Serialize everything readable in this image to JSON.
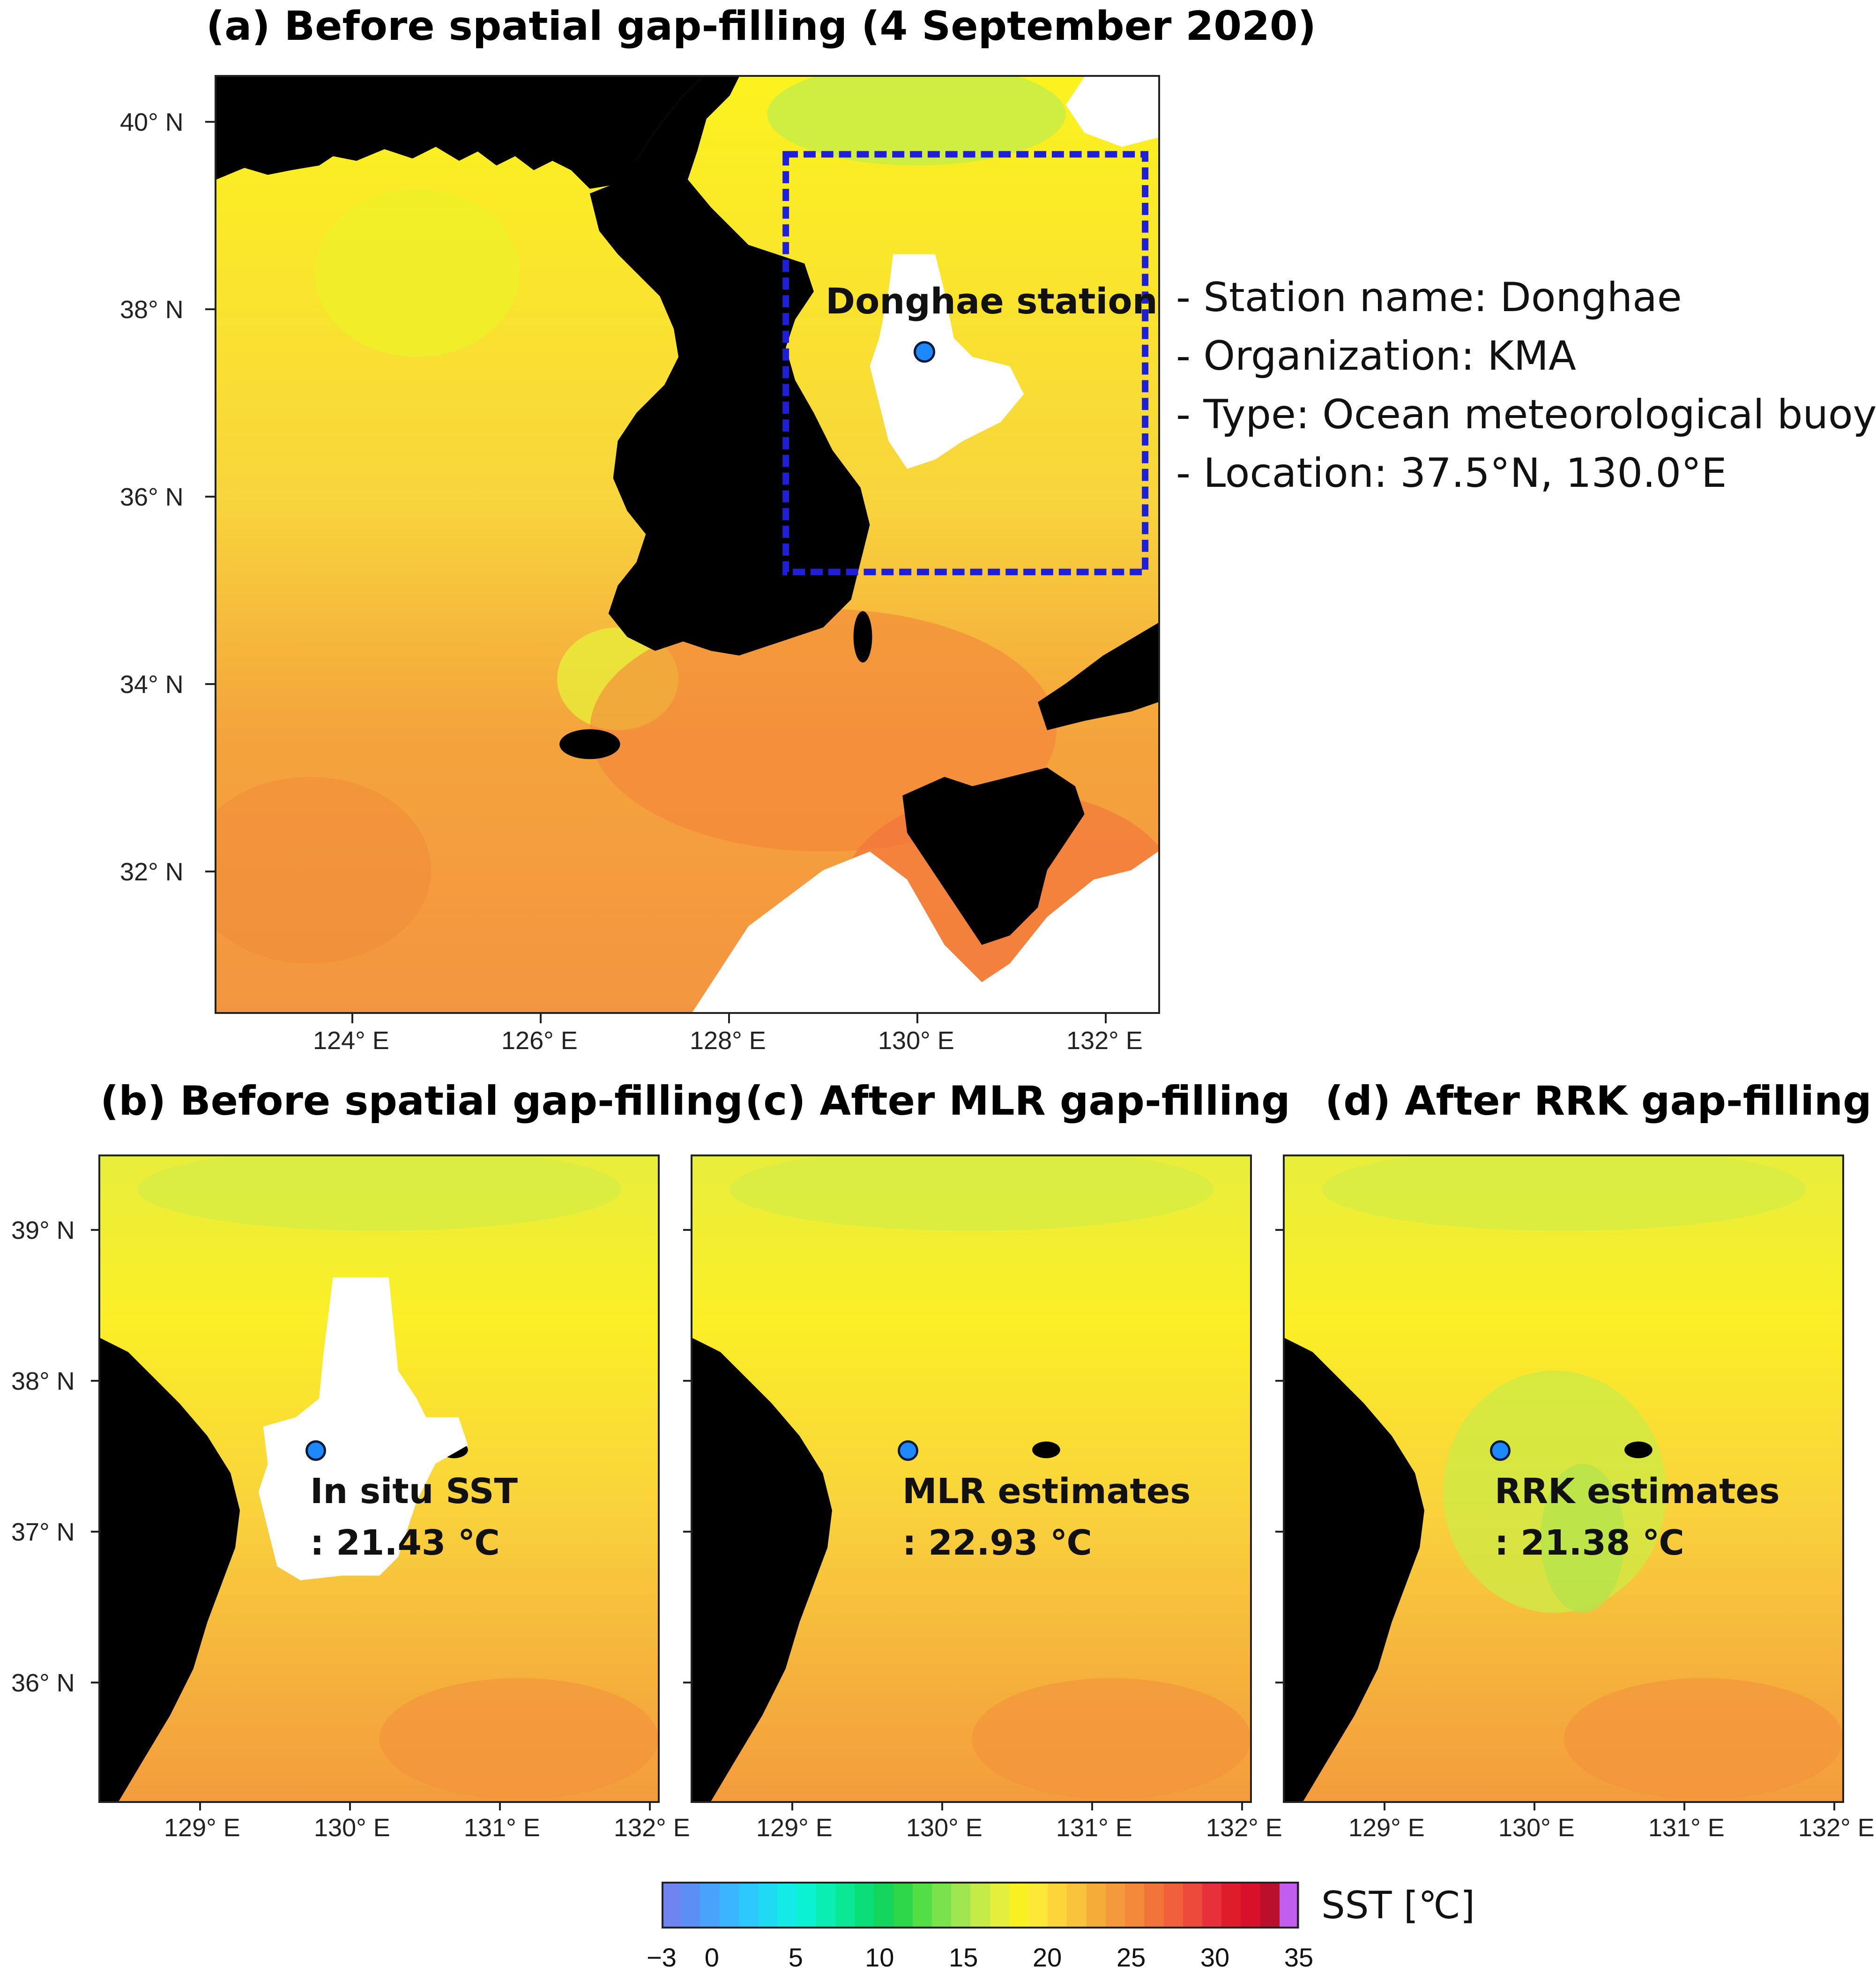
{
  "panel_a": {
    "title": "(a) Before spatial gap-filling (4 September 2020)",
    "y_ticks": [
      "40° N",
      "38° N",
      "36° N",
      "34° N",
      "32° N"
    ],
    "x_ticks": [
      "124° E",
      "126° E",
      "128° E",
      "130° E",
      "132° E"
    ],
    "station_label": "Donghae station"
  },
  "station_info": [
    "- Station name: Donghae",
    "- Organization: KMA",
    "- Type: Ocean meteorological buoy",
    "- Location: 37.5°N, 130.0°E"
  ],
  "panel_b": {
    "title": "(b) Before spatial gap-filling",
    "label_line1": "In situ SST",
    "label_line2": ": 21.43 ℃"
  },
  "panel_c": {
    "title": "(c) After MLR gap-filling",
    "label_line1": "MLR estimates",
    "label_line2": ": 22.93 ℃"
  },
  "panel_d": {
    "title": "(d) After RRK gap-filling",
    "label_line1": "RRK estimates",
    "label_line2": ": 21.38 ℃"
  },
  "small_y_ticks": [
    "39° N",
    "38° N",
    "37° N",
    "36° N"
  ],
  "small_x_ticks": [
    "129° E",
    "130° E",
    "131° E",
    "132° E"
  ],
  "colorbar": {
    "title": "SST [℃]",
    "ticks": [
      "−3",
      "0",
      "5",
      "10",
      "15",
      "20",
      "25",
      "30",
      "35"
    ],
    "colors": [
      "#6f84ee",
      "#5b8ff5",
      "#4aa3fb",
      "#39b6fd",
      "#2cc8fb",
      "#1fdaf2",
      "#12ebe6",
      "#0af2d0",
      "#0aeeb4",
      "#0ae896",
      "#0ade78",
      "#12d65c",
      "#2cd84a",
      "#52de44",
      "#7ae24a",
      "#a0e650",
      "#c4ea48",
      "#e4ee3c",
      "#f8f020",
      "#fde836",
      "#fbd53a",
      "#f8c23a",
      "#f5ad3a",
      "#f39a3a",
      "#f3873a",
      "#f3743a",
      "#f0603a",
      "#ec4a3a",
      "#e6303a",
      "#df1c2a",
      "#d8102a",
      "#b8102a",
      "#c05ef0"
    ],
    "accent_land": "#000000",
    "accent_gap": "#ffffff",
    "accent_box": "#1f1fd8"
  }
}
